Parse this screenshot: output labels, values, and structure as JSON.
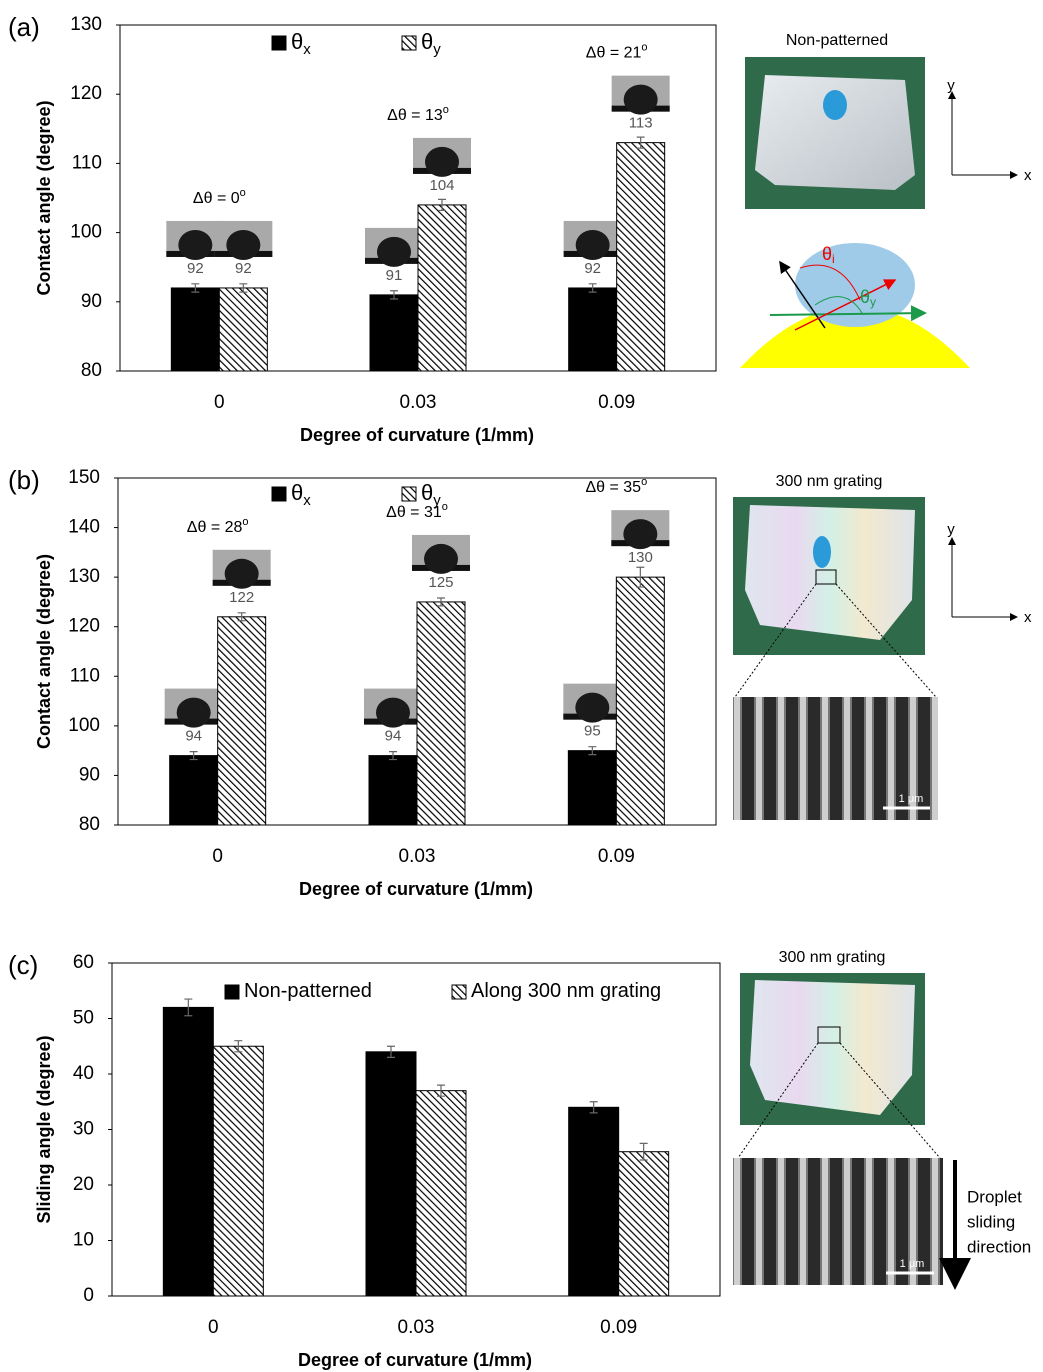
{
  "chart_data": [
    {
      "type": "bar",
      "panel_label": "(a)",
      "x_label": "Degree of curvature (1/mm)",
      "y_label": "Contact angle (degree)",
      "categories": [
        "0",
        "0.03",
        "0.09"
      ],
      "series": [
        {
          "name": "θ",
          "sub": "x",
          "color": "#000000",
          "values": [
            92,
            91,
            92
          ],
          "error": [
            0.6,
            0.6,
            0.6
          ]
        },
        {
          "name": "θ",
          "sub": "y",
          "color": "#000000",
          "hatch": true,
          "values": [
            92,
            104,
            113
          ],
          "error": [
            0.6,
            0.8,
            0.8
          ]
        }
      ],
      "show_values": true,
      "annotations": [
        {
          "text": "Δθ = 0",
          "sup": "o"
        },
        {
          "text": "Δθ = 13",
          "sup": "o"
        },
        {
          "text": "Δθ = 21",
          "sup": "o"
        }
      ],
      "ylim": [
        80,
        130
      ],
      "yticks": [
        80,
        90,
        100,
        110,
        120,
        130
      ],
      "grid": false,
      "legend": "top"
    },
    {
      "type": "bar",
      "panel_label": "(b)",
      "x_label": "Degree of curvature (1/mm)",
      "y_label": "Contact angle (degree)",
      "categories": [
        "0",
        "0.03",
        "0.09"
      ],
      "series": [
        {
          "name": "θ",
          "sub": "x",
          "color": "#000000",
          "values": [
            94,
            94,
            95
          ],
          "error": [
            0.8,
            0.8,
            0.8
          ]
        },
        {
          "name": "θ",
          "sub": "y",
          "color": "#000000",
          "hatch": true,
          "values": [
            122,
            125,
            130
          ],
          "error": [
            0.8,
            0.8,
            2
          ]
        }
      ],
      "show_values": true,
      "annotations": [
        {
          "text": "Δθ = 28",
          "sup": "o"
        },
        {
          "text": "Δθ = 31",
          "sup": "o"
        },
        {
          "text": "Δθ = 35",
          "sup": "o"
        }
      ],
      "ylim": [
        80,
        150
      ],
      "yticks": [
        80,
        90,
        100,
        110,
        120,
        130,
        140,
        150
      ],
      "grid": false,
      "legend": "top"
    },
    {
      "type": "bar",
      "panel_label": "(c)",
      "x_label": "Degree of curvature (1/mm)",
      "y_label": "Sliding angle (degree)",
      "categories": [
        "0",
        "0.03",
        "0.09"
      ],
      "series": [
        {
          "name": "Non-patterned",
          "color": "#000000",
          "values": [
            52,
            44,
            34
          ],
          "error": [
            1.5,
            1,
            1
          ]
        },
        {
          "name": "Along 300 nm grating",
          "color": "#000000",
          "hatch": true,
          "values": [
            45,
            37,
            26
          ],
          "error": [
            1,
            1,
            1.5
          ]
        }
      ],
      "show_values": false,
      "ylim": [
        0,
        60
      ],
      "yticks": [
        0,
        10,
        20,
        30,
        40,
        50,
        60
      ],
      "grid": false,
      "legend": "top"
    }
  ],
  "side_panels": {
    "a": {
      "caption": "Non-patterned",
      "x": "x",
      "y": "y",
      "theta": "θ",
      "theta_i": "i",
      "theta_y": "y"
    },
    "b": {
      "caption": "300 nm grating",
      "x": "x",
      "y": "y",
      "scale": "1 μm"
    },
    "c": {
      "caption": "300 nm grating",
      "scale": "1 μm",
      "direction": [
        "Droplet",
        "sliding",
        "direction"
      ]
    }
  }
}
